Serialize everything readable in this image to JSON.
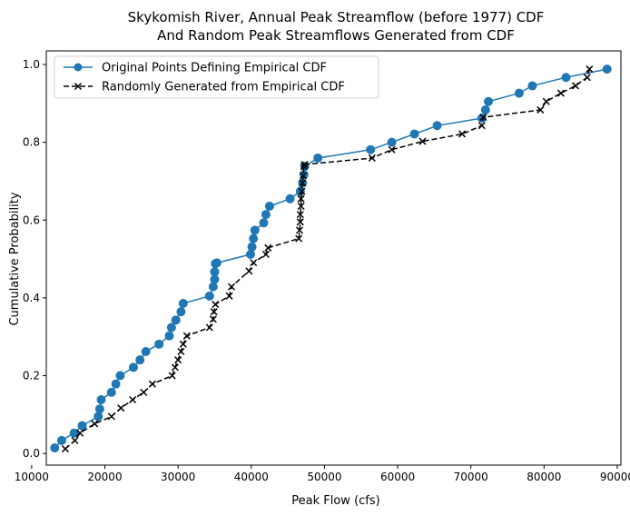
{
  "chart_data": {
    "type": "line",
    "title": "Skykomish River, Annual Peak Streamflow (before 1977) CDF",
    "subtitle": "And Random Peak Streamflows Generated from CDF",
    "xlabel": "Peak Flow (cfs)",
    "ylabel": "Cumulative Probability",
    "xlim": [
      12000,
      90500
    ],
    "ylim": [
      -0.03,
      1.035
    ],
    "xticks": [
      10000,
      20000,
      30000,
      40000,
      50000,
      60000,
      70000,
      80000,
      90000
    ],
    "xtick_labels": [
      "10000",
      "20000",
      "30000",
      "40000",
      "50000",
      "60000",
      "70000",
      "80000",
      "90000"
    ],
    "yticks": [
      0.0,
      0.2,
      0.4,
      0.6,
      0.8,
      1.0
    ],
    "ytick_labels": [
      "0.0",
      "0.2",
      "0.4",
      "0.6",
      "0.8",
      "1.0"
    ],
    "legend_position": "upper-left",
    "grid": false,
    "series": [
      {
        "name": "Original Points Defining Empirical CDF",
        "color": "#1f77b4",
        "marker": "circle",
        "linestyle": "solid",
        "x": [
          13150,
          14100,
          15800,
          16900,
          19100,
          19300,
          19500,
          20900,
          21500,
          22100,
          23900,
          24800,
          25600,
          27400,
          28800,
          29100,
          29700,
          30400,
          30700,
          34300,
          34800,
          35000,
          35000,
          35100,
          35300,
          39900,
          40100,
          40300,
          40500,
          41700,
          42000,
          42500,
          45300,
          46700,
          47000,
          47200,
          47300,
          49100,
          56300,
          59200,
          62300,
          65400,
          71500,
          72000,
          72400,
          76600,
          78400,
          83000,
          88600
        ],
        "y": [
          0.0143,
          0.0333,
          0.0524,
          0.0714,
          0.0952,
          0.1143,
          0.1381,
          0.1571,
          0.1786,
          0.2,
          0.2214,
          0.2405,
          0.2619,
          0.281,
          0.3024,
          0.3238,
          0.3429,
          0.3643,
          0.3857,
          0.4048,
          0.4286,
          0.4476,
          0.4667,
          0.4881,
          0.49,
          0.5119,
          0.531,
          0.5524,
          0.5738,
          0.5929,
          0.6143,
          0.6357,
          0.6548,
          0.6738,
          0.6952,
          0.7167,
          0.7381,
          0.7595,
          0.781,
          0.8,
          0.8214,
          0.8429,
          0.8619,
          0.8833,
          0.9048,
          0.9262,
          0.9452,
          0.9667,
          0.9881
        ]
      },
      {
        "name": "Randomly Generated from Empirical CDF",
        "color": "#000000",
        "marker": "x",
        "linestyle": "dashed",
        "x": [
          14600,
          15900,
          16600,
          18600,
          20900,
          22200,
          23800,
          25300,
          26500,
          29200,
          29600,
          30000,
          30400,
          30700,
          31200,
          34300,
          34800,
          34900,
          35100,
          37000,
          37300,
          39700,
          40300,
          42000,
          42300,
          46500,
          46600,
          46700,
          46700,
          46800,
          46800,
          46900,
          47000,
          47100,
          47200,
          47300,
          56500,
          59200,
          63400,
          68800,
          71500,
          71700,
          79500,
          80300,
          82300,
          84300,
          85900,
          86200
        ],
        "y": [
          0.0119,
          0.0333,
          0.0524,
          0.0762,
          0.0952,
          0.1167,
          0.1381,
          0.1571,
          0.1786,
          0.2,
          0.2214,
          0.2405,
          0.2619,
          0.281,
          0.3024,
          0.3238,
          0.3452,
          0.3643,
          0.3833,
          0.4048,
          0.4286,
          0.469,
          0.4905,
          0.5119,
          0.5286,
          0.5524,
          0.5738,
          0.5952,
          0.6143,
          0.6357,
          0.6548,
          0.6738,
          0.6952,
          0.7143,
          0.7381,
          0.7429,
          0.7595,
          0.781,
          0.8024,
          0.8214,
          0.8429,
          0.8643,
          0.8833,
          0.9048,
          0.9262,
          0.9452,
          0.9667,
          0.9881
        ]
      }
    ]
  }
}
